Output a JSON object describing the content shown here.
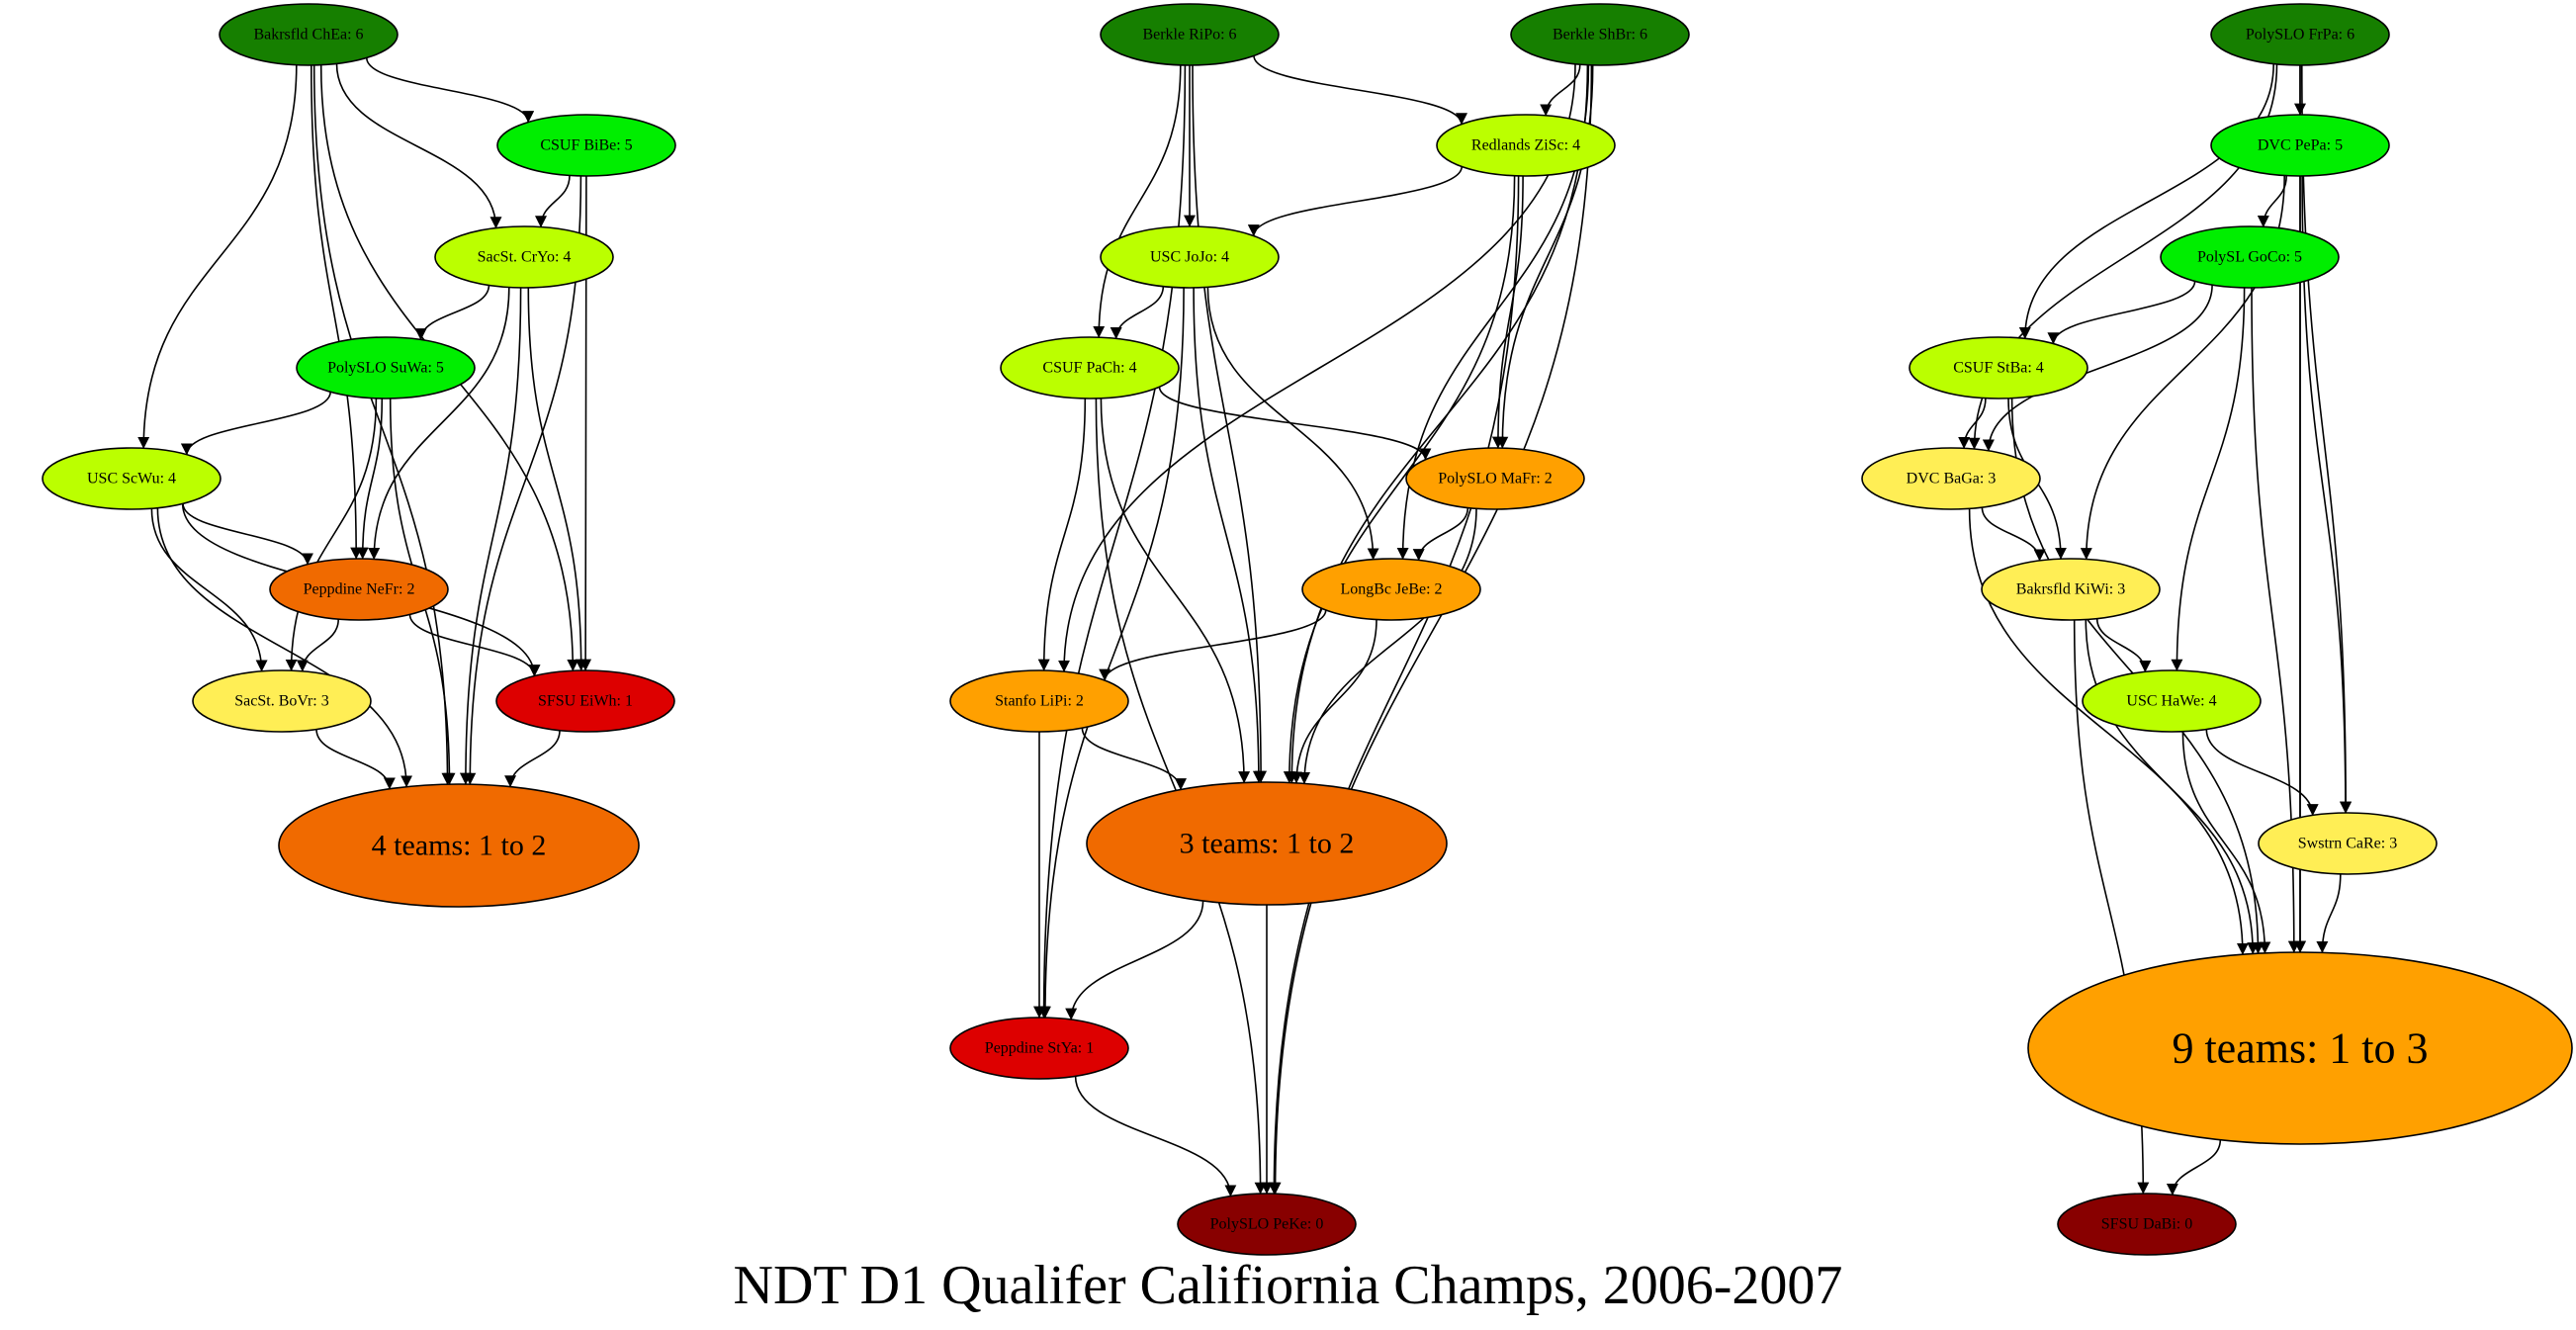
{
  "title": "NDT D1 Qualifer  Califiornia Champs, 2006-2007",
  "colors": {
    "g6": "#167f00",
    "g5": "#00ee00",
    "g4": "#bbff00",
    "g3": "#ffee55",
    "g2": "#ffa000",
    "g2b": "#f06a00",
    "g1": "#dd0000",
    "g0": "#880000"
  },
  "nodes": [
    {
      "id": "bakrsfld_chea",
      "label": "Bakrsfld ChEa: 6",
      "fill": "g6",
      "size": "s"
    },
    {
      "id": "csuf_bibe",
      "label": "CSUF BiBe: 5",
      "fill": "g5",
      "size": "s"
    },
    {
      "id": "sacst_cryo",
      "label": "SacSt. CrYo: 4",
      "fill": "g4",
      "size": "s"
    },
    {
      "id": "polyslo_suwa",
      "label": "PolySLO SuWa: 5",
      "fill": "g5",
      "size": "s"
    },
    {
      "id": "usc_scwu",
      "label": "USC ScWu: 4",
      "fill": "g4",
      "size": "s"
    },
    {
      "id": "peppdine_nefr",
      "label": "Peppdine NeFr: 2",
      "fill": "g2b",
      "size": "s"
    },
    {
      "id": "sacst_bovr",
      "label": "SacSt. BoVr: 3",
      "fill": "g3",
      "size": "s"
    },
    {
      "id": "sfsu_eiwh",
      "label": "SFSU EiWh: 1",
      "fill": "g1",
      "size": "s"
    },
    {
      "id": "four_teams",
      "label": "4 teams: 1 to 2",
      "fill": "g2b",
      "size": "m"
    },
    {
      "id": "berkle_ripo",
      "label": "Berkle RiPo: 6",
      "fill": "g6",
      "size": "s"
    },
    {
      "id": "berkle_shbr",
      "label": "Berkle ShBr: 6",
      "fill": "g6",
      "size": "s"
    },
    {
      "id": "redlands_zisc",
      "label": "Redlands ZiSc: 4",
      "fill": "g4",
      "size": "s"
    },
    {
      "id": "usc_jojo",
      "label": "USC JoJo: 4",
      "fill": "g4",
      "size": "s"
    },
    {
      "id": "csuf_pach",
      "label": "CSUF PaCh: 4",
      "fill": "g4",
      "size": "s"
    },
    {
      "id": "polyslo_mafr",
      "label": "PolySLO MaFr: 2",
      "fill": "g2",
      "size": "s"
    },
    {
      "id": "longbc_jebe",
      "label": "LongBc JeBe: 2",
      "fill": "g2",
      "size": "s"
    },
    {
      "id": "stanfo_lipi",
      "label": "Stanfo LiPi: 2",
      "fill": "g2",
      "size": "s"
    },
    {
      "id": "three_teams",
      "label": "3 teams: 1 to 2",
      "fill": "g2b",
      "size": "m"
    },
    {
      "id": "peppdine_stya",
      "label": "Peppdine StYa: 1",
      "fill": "g1",
      "size": "s"
    },
    {
      "id": "polyslo_peke",
      "label": "PolySLO PeKe: 0",
      "fill": "g0",
      "size": "s"
    },
    {
      "id": "polyslo_frpa",
      "label": "PolySLO FrPa: 6",
      "fill": "g6",
      "size": "s"
    },
    {
      "id": "dvc_pepa",
      "label": "DVC PePa: 5",
      "fill": "g5",
      "size": "s"
    },
    {
      "id": "polysl_goco",
      "label": "PolySL GoCo: 5",
      "fill": "g5",
      "size": "s"
    },
    {
      "id": "csuf_stba",
      "label": "CSUF StBa: 4",
      "fill": "g4",
      "size": "s"
    },
    {
      "id": "dvc_baga",
      "label": "DVC BaGa: 3",
      "fill": "g3",
      "size": "s"
    },
    {
      "id": "bakrsfld_kiwi",
      "label": "Bakrsfld KiWi: 3",
      "fill": "g3",
      "size": "s"
    },
    {
      "id": "usc_hawe",
      "label": "USC HaWe: 4",
      "fill": "g4",
      "size": "s"
    },
    {
      "id": "swstrn_care",
      "label": "Swstrn CaRe: 3",
      "fill": "g3",
      "size": "s"
    },
    {
      "id": "nine_teams",
      "label": "9 teams: 1 to 3",
      "fill": "g2",
      "size": "l"
    },
    {
      "id": "sfsu_dabi",
      "label": "SFSU DaBi: 0",
      "fill": "g0",
      "size": "s"
    }
  ],
  "edges": [
    [
      "bakrsfld_chea",
      "csuf_bibe"
    ],
    [
      "bakrsfld_chea",
      "sacst_cryo"
    ],
    [
      "bakrsfld_chea",
      "usc_scwu"
    ],
    [
      "bakrsfld_chea",
      "peppdine_nefr"
    ],
    [
      "bakrsfld_chea",
      "four_teams"
    ],
    [
      "bakrsfld_chea",
      "sfsu_eiwh"
    ],
    [
      "csuf_bibe",
      "sacst_cryo"
    ],
    [
      "csuf_bibe",
      "sfsu_eiwh"
    ],
    [
      "csuf_bibe",
      "four_teams"
    ],
    [
      "sacst_cryo",
      "polyslo_suwa"
    ],
    [
      "sacst_cryo",
      "peppdine_nefr"
    ],
    [
      "sacst_cryo",
      "sfsu_eiwh"
    ],
    [
      "sacst_cryo",
      "four_teams"
    ],
    [
      "polyslo_suwa",
      "usc_scwu"
    ],
    [
      "polyslo_suwa",
      "peppdine_nefr"
    ],
    [
      "polyslo_suwa",
      "sacst_bovr"
    ],
    [
      "polyslo_suwa",
      "four_teams"
    ],
    [
      "usc_scwu",
      "peppdine_nefr"
    ],
    [
      "usc_scwu",
      "sacst_bovr"
    ],
    [
      "usc_scwu",
      "sfsu_eiwh"
    ],
    [
      "usc_scwu",
      "four_teams"
    ],
    [
      "peppdine_nefr",
      "sacst_bovr"
    ],
    [
      "peppdine_nefr",
      "sfsu_eiwh"
    ],
    [
      "sacst_bovr",
      "four_teams"
    ],
    [
      "sfsu_eiwh",
      "four_teams"
    ],
    [
      "berkle_ripo",
      "redlands_zisc"
    ],
    [
      "berkle_ripo",
      "usc_jojo"
    ],
    [
      "berkle_ripo",
      "csuf_pach"
    ],
    [
      "berkle_ripo",
      "three_teams"
    ],
    [
      "berkle_ripo",
      "peppdine_stya"
    ],
    [
      "berkle_shbr",
      "redlands_zisc"
    ],
    [
      "berkle_shbr",
      "stanfo_lipi"
    ],
    [
      "berkle_shbr",
      "longbc_jebe"
    ],
    [
      "berkle_shbr",
      "polyslo_mafr"
    ],
    [
      "berkle_shbr",
      "three_teams"
    ],
    [
      "berkle_shbr",
      "polyslo_peke"
    ],
    [
      "redlands_zisc",
      "usc_jojo"
    ],
    [
      "redlands_zisc",
      "polyslo_mafr"
    ],
    [
      "redlands_zisc",
      "three_teams"
    ],
    [
      "redlands_zisc",
      "polyslo_peke"
    ],
    [
      "usc_jojo",
      "csuf_pach"
    ],
    [
      "usc_jojo",
      "longbc_jebe"
    ],
    [
      "usc_jojo",
      "three_teams"
    ],
    [
      "usc_jojo",
      "peppdine_stya"
    ],
    [
      "csuf_pach",
      "polyslo_mafr"
    ],
    [
      "csuf_pach",
      "stanfo_lipi"
    ],
    [
      "csuf_pach",
      "three_teams"
    ],
    [
      "csuf_pach",
      "polyslo_peke"
    ],
    [
      "polyslo_mafr",
      "longbc_jebe"
    ],
    [
      "polyslo_mafr",
      "three_teams"
    ],
    [
      "longbc_jebe",
      "stanfo_lipi"
    ],
    [
      "longbc_jebe",
      "three_teams"
    ],
    [
      "stanfo_lipi",
      "three_teams"
    ],
    [
      "stanfo_lipi",
      "peppdine_stya"
    ],
    [
      "three_teams",
      "peppdine_stya"
    ],
    [
      "three_teams",
      "polyslo_peke"
    ],
    [
      "peppdine_stya",
      "polyslo_peke"
    ],
    [
      "polyslo_frpa",
      "dvc_pepa"
    ],
    [
      "polyslo_frpa",
      "csuf_stba"
    ],
    [
      "polyslo_frpa",
      "dvc_baga"
    ],
    [
      "polyslo_frpa",
      "swstrn_care"
    ],
    [
      "polyslo_frpa",
      "nine_teams"
    ],
    [
      "dvc_pepa",
      "polysl_goco"
    ],
    [
      "dvc_pepa",
      "bakrsfld_kiwi"
    ],
    [
      "dvc_pepa",
      "swstrn_care"
    ],
    [
      "dvc_pepa",
      "nine_teams"
    ],
    [
      "polysl_goco",
      "csuf_stba"
    ],
    [
      "polysl_goco",
      "dvc_baga"
    ],
    [
      "polysl_goco",
      "usc_hawe"
    ],
    [
      "polysl_goco",
      "nine_teams"
    ],
    [
      "csuf_stba",
      "dvc_baga"
    ],
    [
      "csuf_stba",
      "bakrsfld_kiwi"
    ],
    [
      "csuf_stba",
      "nine_teams"
    ],
    [
      "dvc_baga",
      "bakrsfld_kiwi"
    ],
    [
      "dvc_baga",
      "nine_teams"
    ],
    [
      "bakrsfld_kiwi",
      "usc_hawe"
    ],
    [
      "bakrsfld_kiwi",
      "nine_teams"
    ],
    [
      "bakrsfld_kiwi",
      "sfsu_dabi"
    ],
    [
      "usc_hawe",
      "swstrn_care"
    ],
    [
      "usc_hawe",
      "nine_teams"
    ],
    [
      "swstrn_care",
      "nine_teams"
    ],
    [
      "nine_teams",
      "sfsu_dabi"
    ]
  ]
}
